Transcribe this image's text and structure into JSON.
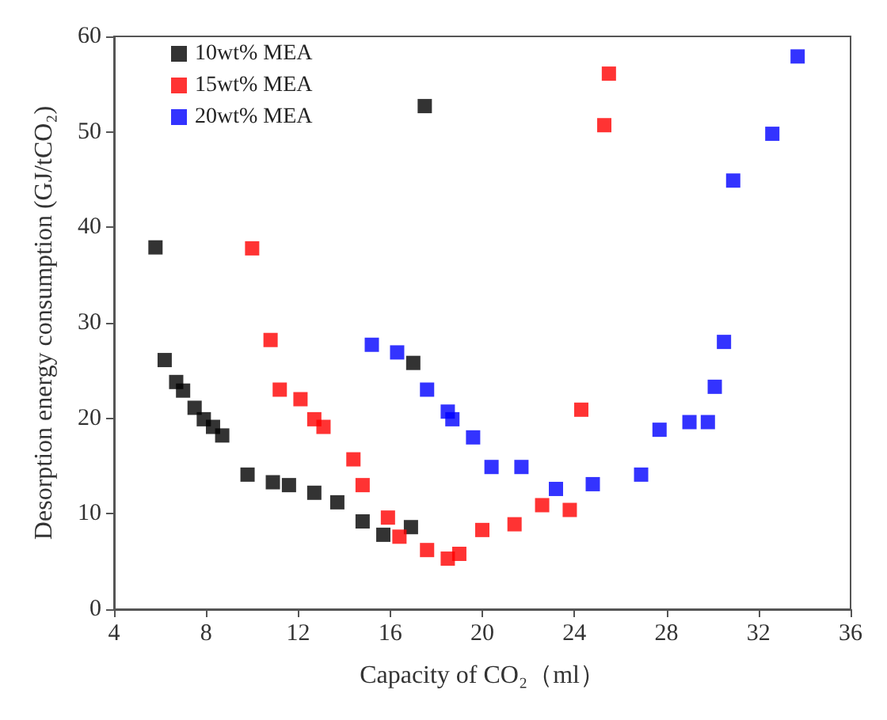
{
  "chart_data": {
    "type": "scatter",
    "xlabel": "Capacity of CO₂（ml）",
    "ylabel": "Desorption energy consumption (GJ/tCO₂)",
    "xlim": [
      4,
      36
    ],
    "xticks": [
      4,
      8,
      12,
      16,
      20,
      24,
      28,
      32,
      36
    ],
    "ylim": [
      0,
      60
    ],
    "yticks": [
      0,
      10,
      20,
      30,
      40,
      50,
      60
    ],
    "grid": false,
    "legend": "top left",
    "marker": "square",
    "series": [
      {
        "name": "10wt% MEA",
        "color": "#000000",
        "x": [
          5.8,
          6.2,
          6.7,
          7.0,
          7.5,
          7.9,
          8.3,
          8.7,
          9.8,
          10.9,
          11.6,
          12.7,
          13.7,
          14.8,
          15.7,
          16.9,
          17.0,
          17.5
        ],
        "values": [
          37.9,
          26.1,
          23.8,
          22.9,
          21.1,
          19.9,
          19.1,
          18.2,
          14.1,
          13.3,
          13.0,
          12.2,
          11.2,
          9.2,
          7.8,
          8.6,
          25.8,
          52.7
        ]
      },
      {
        "name": "15wt% MEA",
        "color": "#ff0000",
        "x": [
          10.0,
          10.8,
          11.2,
          12.1,
          12.7,
          13.1,
          14.4,
          14.8,
          15.9,
          16.4,
          17.6,
          18.5,
          19.0,
          20.0,
          21.4,
          22.6,
          23.8,
          24.3,
          25.3,
          25.5
        ],
        "values": [
          37.8,
          28.2,
          23.0,
          22.0,
          19.9,
          19.1,
          15.7,
          13.0,
          9.6,
          7.6,
          6.2,
          5.3,
          5.8,
          8.3,
          8.9,
          10.9,
          10.4,
          20.9,
          50.7,
          56.1
        ]
      },
      {
        "name": "20wt% MEA",
        "color": "#0000ff",
        "x": [
          15.2,
          16.3,
          17.6,
          18.5,
          18.7,
          19.6,
          20.4,
          21.7,
          23.2,
          24.8,
          26.9,
          27.7,
          29.0,
          29.8,
          30.1,
          30.5,
          30.9,
          32.6,
          33.7
        ],
        "values": [
          27.7,
          26.9,
          23.0,
          20.7,
          19.9,
          18.0,
          14.9,
          14.9,
          12.6,
          13.1,
          14.1,
          18.8,
          19.6,
          19.6,
          23.3,
          28.0,
          44.9,
          49.8,
          57.9
        ]
      }
    ]
  }
}
